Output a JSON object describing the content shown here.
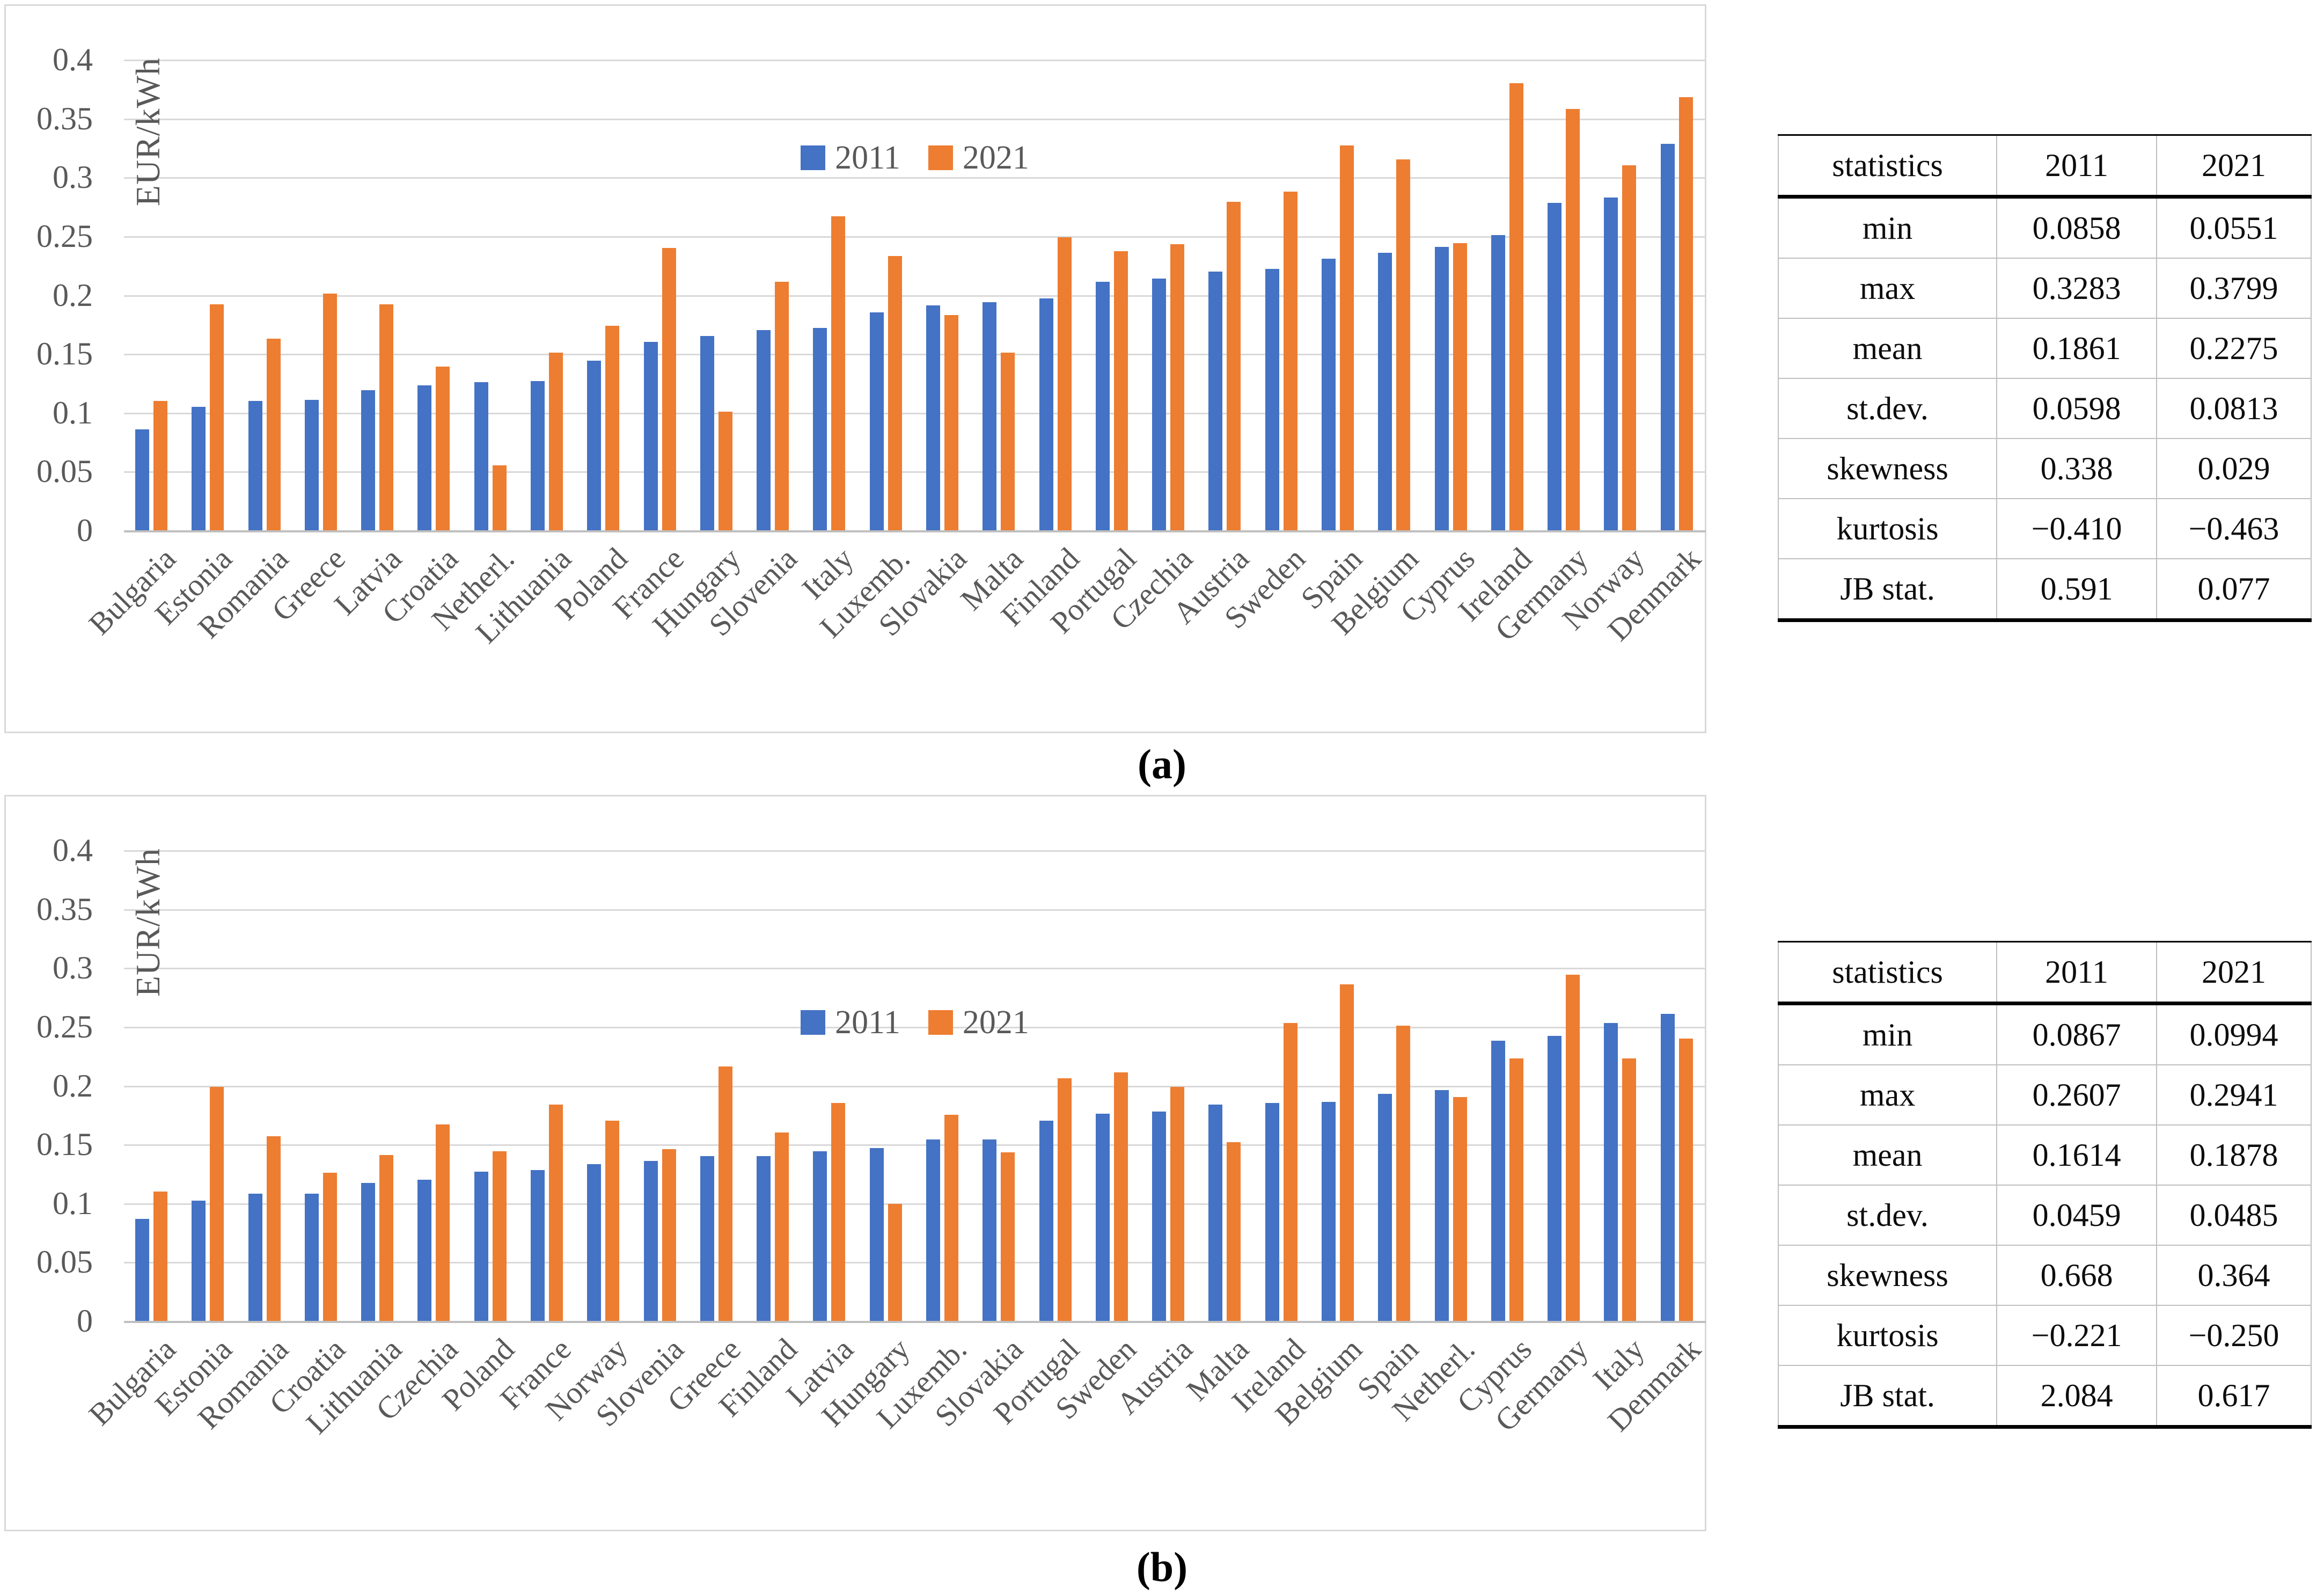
{
  "figure": {
    "caption_a": "(a)",
    "caption_b": "(b)",
    "colors": {
      "series_2011": "#4472C4",
      "series_2021": "#ED7D31",
      "gridline": "#D9D9D9",
      "baseline": "#BFBFBF",
      "axis_text": "#595959",
      "table_text": "#0d0d0d"
    }
  },
  "chart_data": [
    {
      "id": "a",
      "type": "bar",
      "title": "",
      "xlabel": "",
      "ylabel": "EUR/kWh",
      "ylim": [
        0,
        0.4
      ],
      "y_ticks": [
        "0.4",
        "0.35",
        "0.3",
        "0.25",
        "0.2",
        "0.15",
        "0.1",
        "0.05",
        "0"
      ],
      "grid": true,
      "legend_position": "inside-top-center",
      "legend": [
        "2011",
        "2021"
      ],
      "categories": [
        "Bulgaria",
        "Estonia",
        "Romania",
        "Greece",
        "Latvia",
        "Croatia",
        "Netherl.",
        "Lithuania",
        "Poland",
        "France",
        "Hungary",
        "Slovenia",
        "Italy",
        "Luxemb.",
        "Slovakia",
        "Malta",
        "Finland",
        "Portugal",
        "Czechia",
        "Austria",
        "Sweden",
        "Spain",
        "Belgium",
        "Cyprus",
        "Ireland",
        "Germany",
        "Norway",
        "Denmark"
      ],
      "series": [
        {
          "name": "2011",
          "values": [
            0.0858,
            0.105,
            0.11,
            0.111,
            0.119,
            0.123,
            0.126,
            0.127,
            0.144,
            0.16,
            0.165,
            0.17,
            0.172,
            0.185,
            0.191,
            0.194,
            0.197,
            0.211,
            0.214,
            0.22,
            0.222,
            0.231,
            0.236,
            0.241,
            0.251,
            0.278,
            0.283,
            0.3283
          ]
        },
        {
          "name": "2021",
          "values": [
            0.11,
            0.192,
            0.163,
            0.201,
            0.192,
            0.139,
            0.0551,
            0.151,
            0.174,
            0.24,
            0.101,
            0.211,
            0.267,
            0.233,
            0.183,
            0.151,
            0.249,
            0.237,
            0.243,
            0.279,
            0.288,
            0.327,
            0.315,
            0.244,
            0.3799,
            0.358,
            0.31,
            0.368
          ]
        }
      ],
      "legend_top": 252
    },
    {
      "id": "b",
      "type": "bar",
      "title": "",
      "xlabel": "",
      "ylabel": "EUR/kWh",
      "ylim": [
        0,
        0.4
      ],
      "y_ticks": [
        "0.4",
        "0.35",
        "0.3",
        "0.25",
        "0.2",
        "0.15",
        "0.1",
        "0.05",
        "0"
      ],
      "grid": true,
      "legend_position": "inside-top-center",
      "legend": [
        "2011",
        "2021"
      ],
      "categories": [
        "Bulgaria",
        "Estonia",
        "Romania",
        "Croatia",
        "Lithuania",
        "Czechia",
        "Poland",
        "France",
        "Norway",
        "Slovenia",
        "Greece",
        "Finland",
        "Latvia",
        "Hungary",
        "Luxemb.",
        "Slovakia",
        "Portugal",
        "Sweden",
        "Austria",
        "Malta",
        "Ireland",
        "Belgium",
        "Spain",
        "Netherl.",
        "Cyprus",
        "Germany",
        "Italy",
        "Denmark"
      ],
      "series": [
        {
          "name": "2011",
          "values": [
            0.0867,
            0.102,
            0.108,
            0.108,
            0.117,
            0.12,
            0.127,
            0.128,
            0.133,
            0.136,
            0.14,
            0.14,
            0.144,
            0.147,
            0.154,
            0.154,
            0.17,
            0.176,
            0.178,
            0.184,
            0.185,
            0.186,
            0.193,
            0.196,
            0.238,
            0.242,
            0.253,
            0.2607
          ]
        },
        {
          "name": "2021",
          "values": [
            0.11,
            0.199,
            0.157,
            0.126,
            0.141,
            0.167,
            0.144,
            0.184,
            0.17,
            0.146,
            0.216,
            0.16,
            0.185,
            0.0994,
            0.175,
            0.143,
            0.206,
            0.211,
            0.199,
            0.152,
            0.253,
            0.286,
            0.251,
            0.19,
            0.223,
            0.2941,
            0.223,
            0.24
          ]
        }
      ],
      "legend_top": 390
    }
  ],
  "tables": [
    {
      "id": "a",
      "headers": [
        "statistics",
        "2011",
        "2021"
      ],
      "rows": [
        [
          "min",
          "0.0858",
          "0.0551"
        ],
        [
          "max",
          "0.3283",
          "0.3799"
        ],
        [
          "mean",
          "0.1861",
          "0.2275"
        ],
        [
          "st.dev.",
          "0.0598",
          "0.0813"
        ],
        [
          "skewness",
          "0.338",
          "0.029"
        ],
        [
          "kurtosis",
          "−0.410",
          "−0.463"
        ],
        [
          "JB stat.",
          "0.591",
          "0.077"
        ]
      ]
    },
    {
      "id": "b",
      "headers": [
        "statistics",
        "2011",
        "2021"
      ],
      "rows": [
        [
          "min",
          "0.0867",
          "0.0994"
        ],
        [
          "max",
          "0.2607",
          "0.2941"
        ],
        [
          "mean",
          "0.1614",
          "0.1878"
        ],
        [
          "st.dev.",
          "0.0459",
          "0.0485"
        ],
        [
          "skewness",
          "0.668",
          "0.364"
        ],
        [
          "kurtosis",
          "−0.221",
          "−0.250"
        ],
        [
          "JB stat.",
          "2.084",
          "0.617"
        ]
      ]
    }
  ]
}
